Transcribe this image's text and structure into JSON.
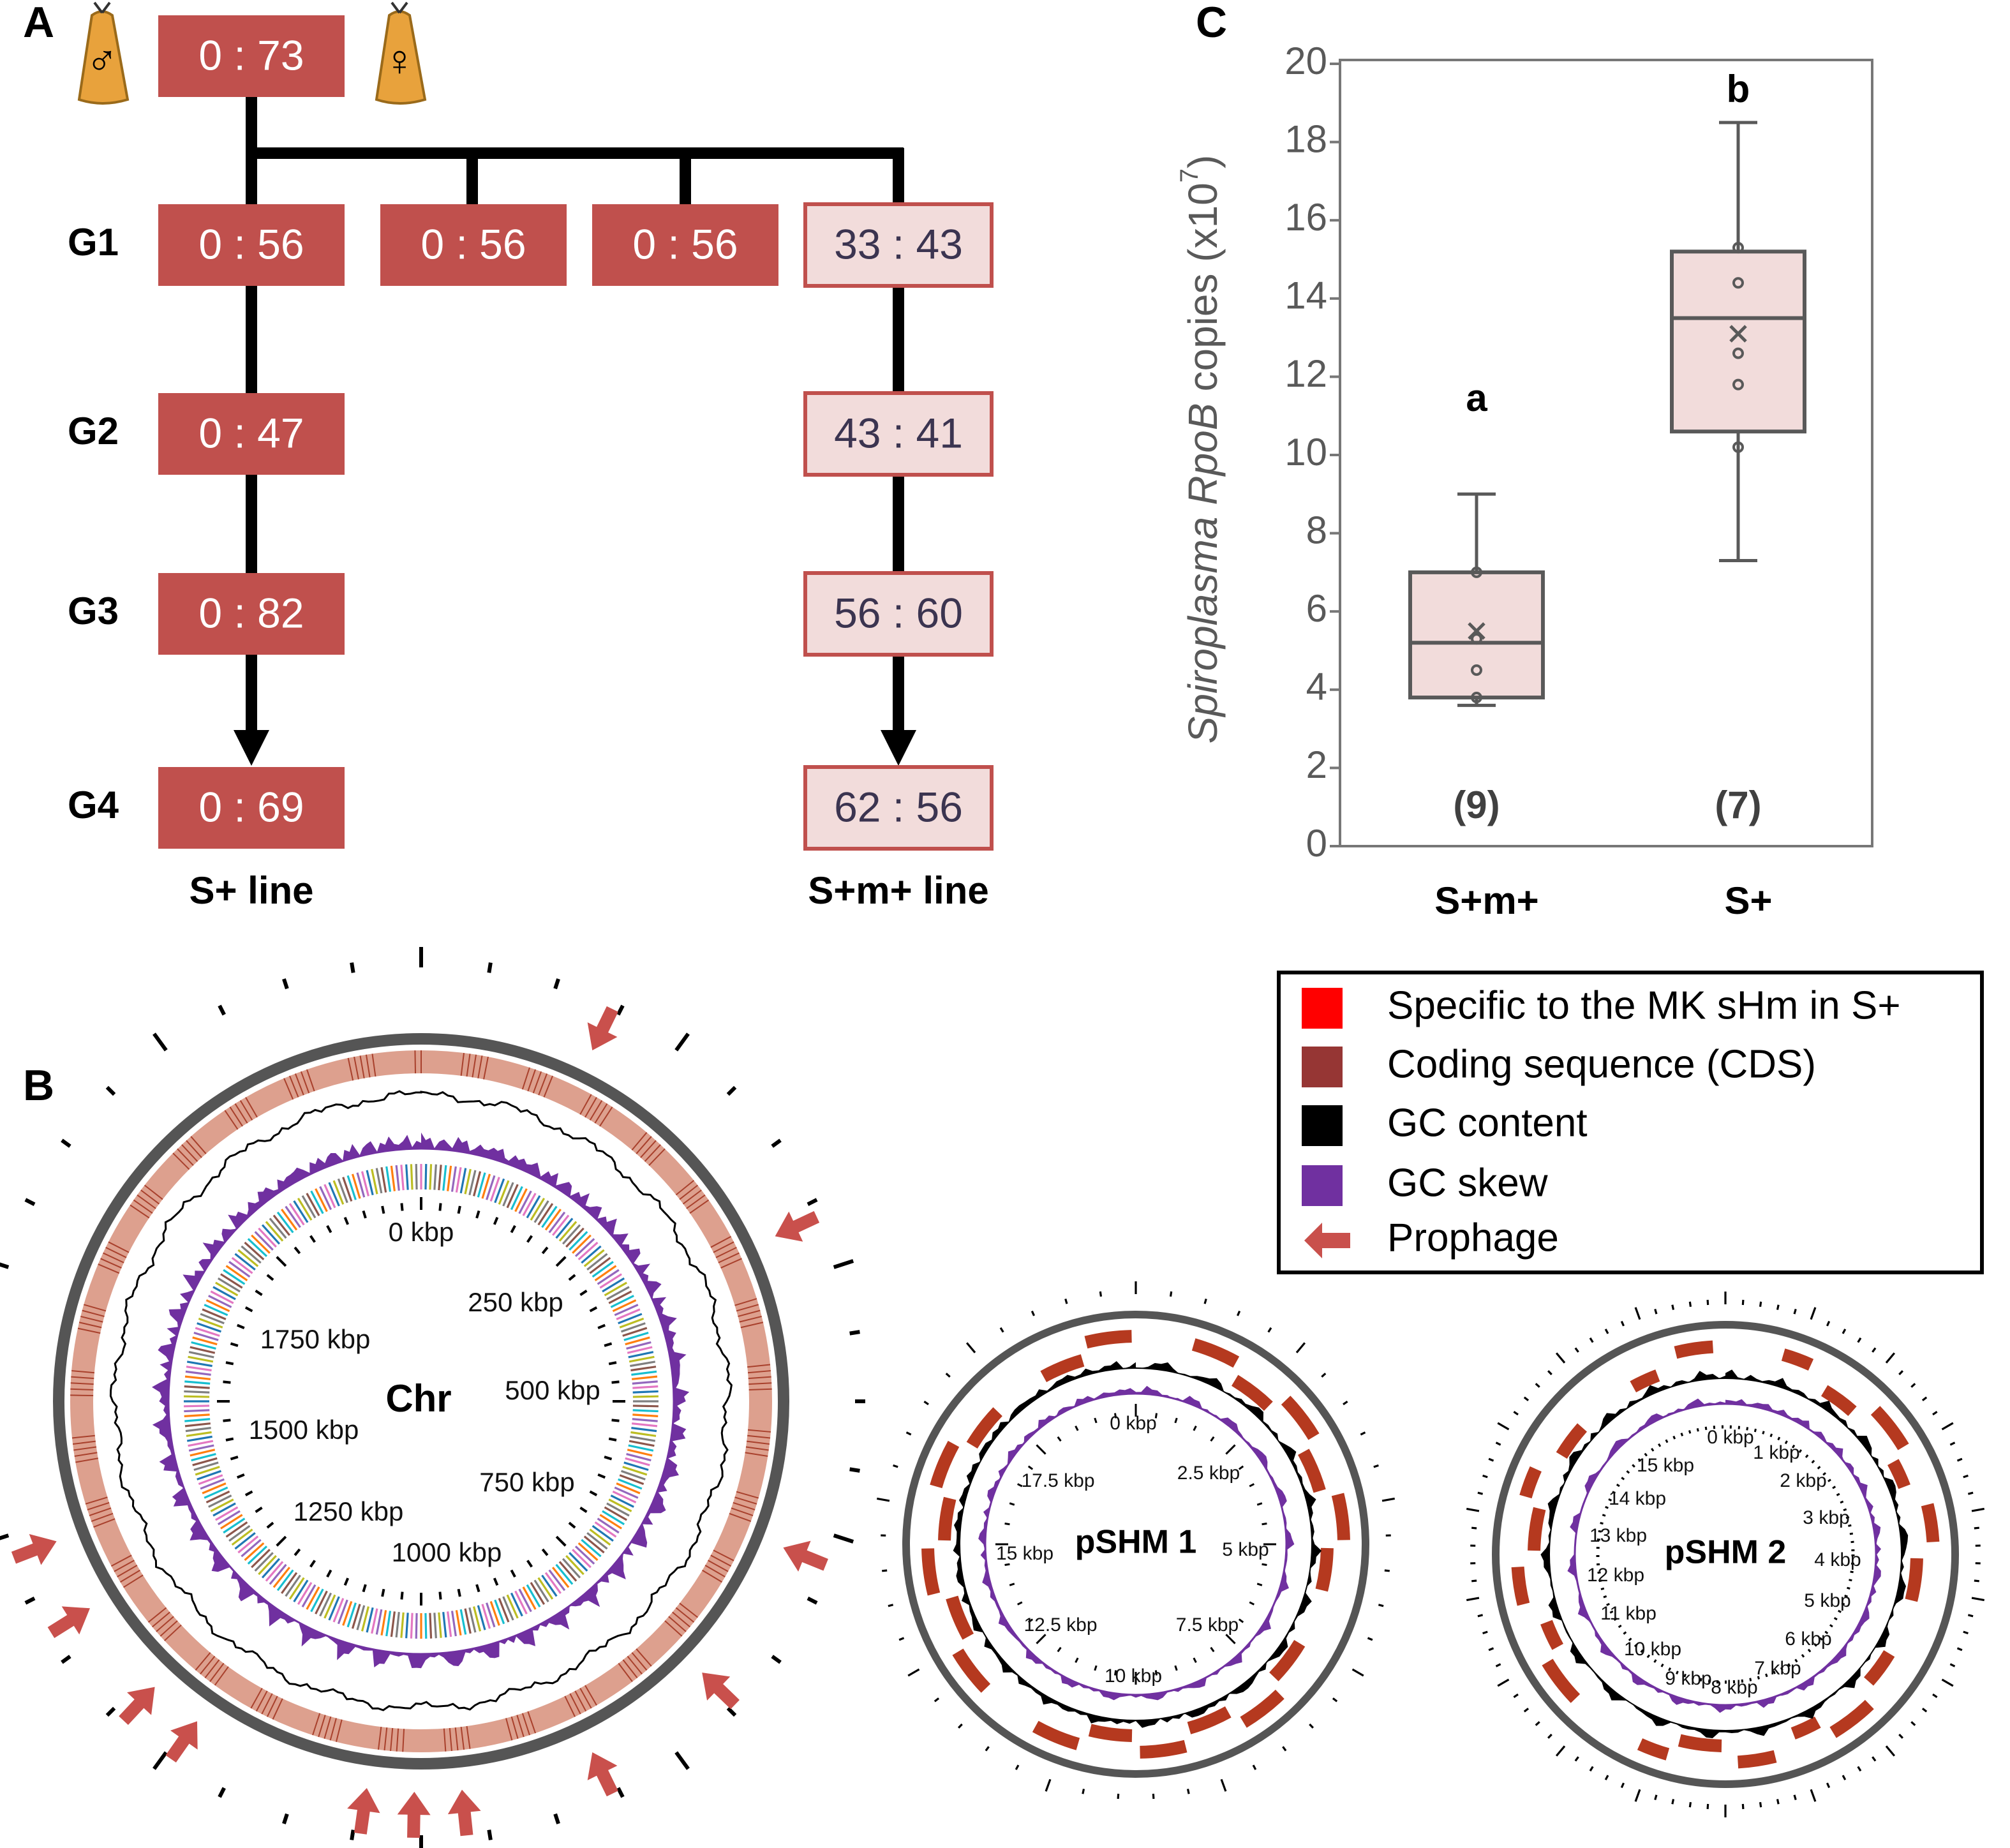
{
  "panel_a": {
    "label": "A",
    "male_symbol": "♂",
    "female_symbol": "♀",
    "parent": "0 : 73",
    "generations": [
      "G1",
      "G2",
      "G3",
      "G4"
    ],
    "s_line": [
      "0 : 56",
      "0 : 47",
      "0 : 82",
      "0 : 69"
    ],
    "g1_other": [
      "0 : 56",
      "0 : 56"
    ],
    "sm_line": [
      "33 : 43",
      "43 : 41",
      "56 : 60",
      "62 : 56"
    ],
    "line_labels": [
      "S+  line",
      "S+m+ line"
    ]
  },
  "panel_b": {
    "label": "B",
    "maps": [
      {
        "name": "Chr",
        "ticks": [
          "0 kbp",
          "250 kbp",
          "500 kbp",
          "750 kbp",
          "1000 kbp",
          "1250 kbp",
          "1500 kbp",
          "1750 kbp"
        ]
      },
      {
        "name": "pSHM 1",
        "ticks": [
          "0 kbp",
          "2.5 kbp",
          "5 kbp",
          "7.5 kbp",
          "10 kbp",
          "12.5 kbp",
          "15 kbp",
          "17.5 kbp"
        ]
      },
      {
        "name": "pSHM 2",
        "ticks": [
          "0 kbp",
          "1 kbp",
          "2 kbp",
          "3 kbp",
          "4 kbp",
          "5 kbp",
          "6 kbp",
          "7 kbp",
          "8 kbp",
          "9 kbp",
          "10 kbp",
          "11 kbp",
          "12 kbp",
          "13 kbp",
          "14 kbp",
          "15 kbp"
        ]
      }
    ],
    "legend": [
      {
        "label": "Specific to the MK sHm in S+",
        "color": "#ff0000"
      },
      {
        "label": "Coding sequence (CDS)",
        "color": "#963634"
      },
      {
        "label": "GC content",
        "color": "#000000"
      },
      {
        "label": "GC skew",
        "color": "#7030a0"
      },
      {
        "label": "Prophage",
        "color": "#c9504c"
      }
    ]
  },
  "chart_data": {
    "type": "box",
    "panel_label": "C",
    "ylabel_parts": [
      "Spiroplasma",
      "RpoB",
      "copies (x10",
      "7",
      ")"
    ],
    "categories": [
      "S+m+",
      "S+"
    ],
    "count_labels": [
      "(9)",
      "(7)"
    ],
    "group_letters": [
      "a",
      "b"
    ],
    "color": "#f2dcdb",
    "boxes": [
      {
        "min": 3.6,
        "q1": 3.8,
        "median": 5.2,
        "q3": 7.0,
        "max": 9.0,
        "mean": 5.5,
        "points": [
          7.0,
          5.3,
          4.5,
          3.8
        ]
      },
      {
        "min": 7.3,
        "q1": 10.6,
        "median": 13.5,
        "q3": 15.2,
        "max": 18.5,
        "mean": 13.1,
        "points": [
          15.3,
          14.4,
          12.6,
          11.8,
          10.2
        ]
      }
    ],
    "ylim": [
      0,
      20
    ],
    "yticks": [
      0,
      2,
      4,
      6,
      8,
      10,
      12,
      14,
      16,
      18,
      20
    ]
  }
}
